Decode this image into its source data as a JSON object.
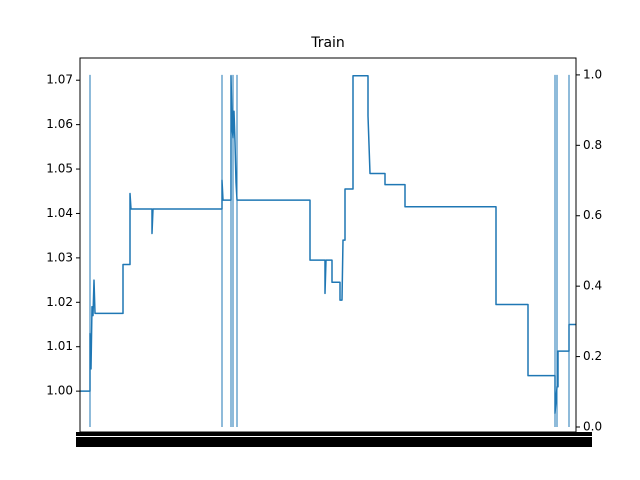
{
  "chart_data": {
    "type": "line",
    "title": "Train",
    "series": [
      {
        "color": "#1f77b4",
        "x": [
          0,
          10,
          10,
          11,
          12,
          13,
          14,
          15,
          43,
          43,
          50,
          50,
          51,
          72,
          72,
          73,
          142,
          142,
          143,
          151,
          151,
          152,
          153,
          154,
          155,
          156,
          157,
          230,
          230,
          245,
          245,
          246,
          252,
          252,
          260,
          260,
          262,
          263,
          265,
          265,
          273,
          273,
          288,
          288,
          290,
          305,
          305,
          325,
          325,
          416,
          416,
          448,
          448,
          475,
          475,
          477,
          478,
          478,
          489,
          489,
          496
        ],
        "values": [
          1.0,
          1.0,
          1.013,
          1.005,
          1.019,
          1.017,
          1.025,
          1.0175,
          1.0175,
          1.0285,
          1.0285,
          1.0445,
          1.041,
          1.041,
          1.0355,
          1.041,
          1.041,
          1.0475,
          1.043,
          1.043,
          1.071,
          1.06,
          1.057,
          1.063,
          1.056,
          1.047,
          1.043,
          1.043,
          1.0295,
          1.0295,
          1.022,
          1.0295,
          1.0295,
          1.0245,
          1.0245,
          1.0205,
          1.0205,
          1.034,
          1.034,
          1.0455,
          1.0455,
          1.071,
          1.071,
          1.062,
          1.049,
          1.049,
          1.0465,
          1.0465,
          1.0415,
          1.0415,
          1.0195,
          1.0195,
          1.0035,
          1.0035,
          0.995,
          1.001,
          1.001,
          1.009,
          1.009,
          1.015,
          1.015
        ]
      },
      {
        "color": "#1f77b4",
        "axis": "y2",
        "x": [
          10,
          10,
          10,
          142,
          142,
          142,
          151,
          151,
          151,
          153,
          153,
          153,
          157,
          157,
          157,
          475,
          475,
          475,
          477,
          477,
          477,
          489,
          489,
          489
        ],
        "values": [
          0,
          1,
          null,
          0,
          1,
          null,
          0,
          1,
          null,
          0,
          1,
          null,
          0,
          1,
          null,
          0,
          1,
          null,
          0,
          1,
          null,
          0,
          1,
          null
        ]
      }
    ],
    "xlim": [
      0,
      496
    ],
    "ylim": [
      0.9908,
      1.075
    ],
    "yticks": [
      {
        "value": 1.0,
        "label": "1.00"
      },
      1.01,
      1.02,
      1.03,
      1.04,
      1.05,
      1.06,
      1.07
    ],
    "y2lim": [
      -0.0142,
      1.048
    ],
    "y2ticks": [
      {
        "value": 0,
        "label": "0.0"
      },
      0.2,
      0.4,
      0.6,
      0.8,
      {
        "value": 1,
        "label": "1.0"
      }
    ]
  }
}
